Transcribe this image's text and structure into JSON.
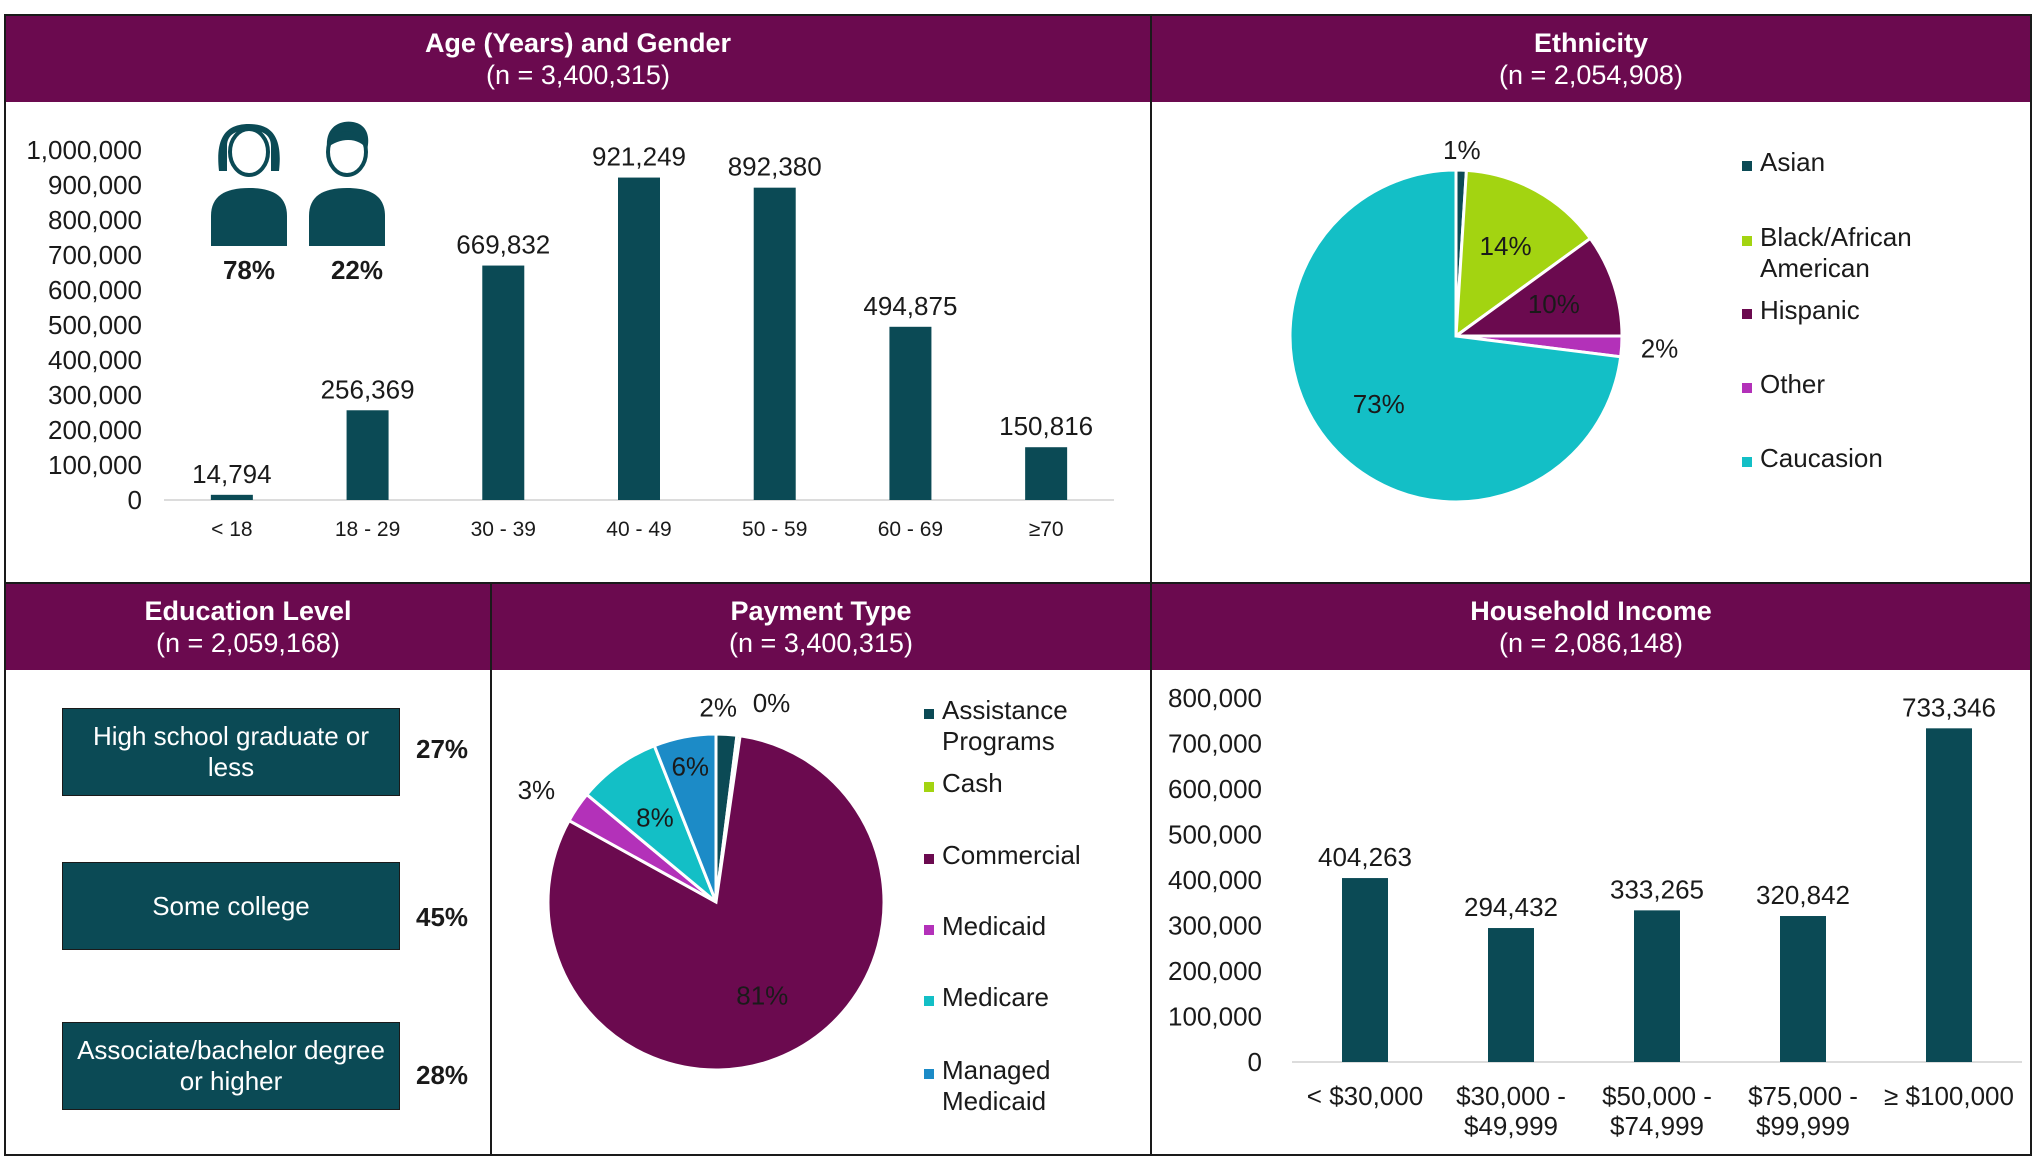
{
  "colors": {
    "header": "#6b0a4f",
    "bar": "#0b4a55",
    "asian": "#0b4a55",
    "black": "#a3d411",
    "hispanic": "#6b0a4f",
    "other": "#b331b9",
    "caucasian": "#13bfc6",
    "assistance": "#0b4a55",
    "cash": "#a3d411",
    "commercial": "#6b0a4f",
    "medicaid": "#b331b9",
    "medicare": "#13bfc6",
    "managed_medicaid": "#1c8bc7"
  },
  "panels": {
    "age": {
      "title": "Age (Years) and Gender",
      "n": "(n = 3,400,315)"
    },
    "ethnicity": {
      "title": "Ethnicity",
      "n": "(n = 2,054,908)"
    },
    "education": {
      "title": "Education Level",
      "n": "(n = 2,059,168)"
    },
    "payment": {
      "title": "Payment Type",
      "n": "(n = 3,400,315)"
    },
    "income": {
      "title": "Household Income",
      "n": "(n = 2,086,148)"
    }
  },
  "gender": {
    "female_icon": "female-person-icon",
    "male_icon": "male-person-icon",
    "female_pct": "78%",
    "male_pct": "22%"
  },
  "education": {
    "levels": [
      {
        "label": "High school graduate or less",
        "pct": "27%"
      },
      {
        "label": "Some college",
        "pct": "45%"
      },
      {
        "label": "Associate/bachelor degree or higher",
        "pct": "28%"
      }
    ]
  },
  "chart_data": [
    {
      "id": "age",
      "type": "bar",
      "title": "Age (Years) and Gender",
      "categories": [
        "< 18",
        "18 - 29",
        "30 - 39",
        "40 - 49",
        "50 - 59",
        "60 - 69",
        "≥70"
      ],
      "values": [
        14794,
        256369,
        669832,
        921249,
        892380,
        494875,
        150816
      ],
      "value_labels": [
        "14,794",
        "256,369",
        "669,832",
        "921,249",
        "892,380",
        "494,875",
        "150,816"
      ],
      "yticks": [
        "0",
        "100,000",
        "200,000",
        "300,000",
        "400,000",
        "500,000",
        "600,000",
        "700,000",
        "800,000",
        "900,000",
        "1,000,000"
      ],
      "ylim": [
        0,
        1000000
      ]
    },
    {
      "id": "ethnicity",
      "type": "pie",
      "title": "Ethnicity",
      "labels": [
        "Asian",
        "Black/African American",
        "Hispanic",
        "Other",
        "Caucasion"
      ],
      "values": [
        1,
        14,
        10,
        2,
        73
      ],
      "value_labels": [
        "1%",
        "14%",
        "10%",
        "2%",
        "73%"
      ]
    },
    {
      "id": "payment",
      "type": "pie",
      "title": "Payment Type",
      "labels": [
        "Assistance Programs",
        "Cash",
        "Commercial",
        "Medicaid",
        "Medicare",
        "Managed Medicaid"
      ],
      "values": [
        2,
        0.3,
        81,
        3,
        8,
        6
      ],
      "value_labels": [
        "2%",
        "0%",
        "81%",
        "3%",
        "8%",
        "6%"
      ]
    },
    {
      "id": "income",
      "type": "bar",
      "title": "Household Income",
      "categories": [
        "< $30,000",
        "$30,000 - $49,999",
        "$50,000 - $74,999",
        "$75,000 - $99,999",
        "≥ $100,000"
      ],
      "values": [
        404263,
        294432,
        333265,
        320842,
        733346
      ],
      "value_labels": [
        "404,263",
        "294,432",
        "333,265",
        "320,842",
        "733,346"
      ],
      "yticks": [
        "0",
        "100,000",
        "200,000",
        "300,000",
        "400,000",
        "500,000",
        "600,000",
        "700,000",
        "800,000"
      ],
      "ylim": [
        0,
        800000
      ]
    }
  ]
}
